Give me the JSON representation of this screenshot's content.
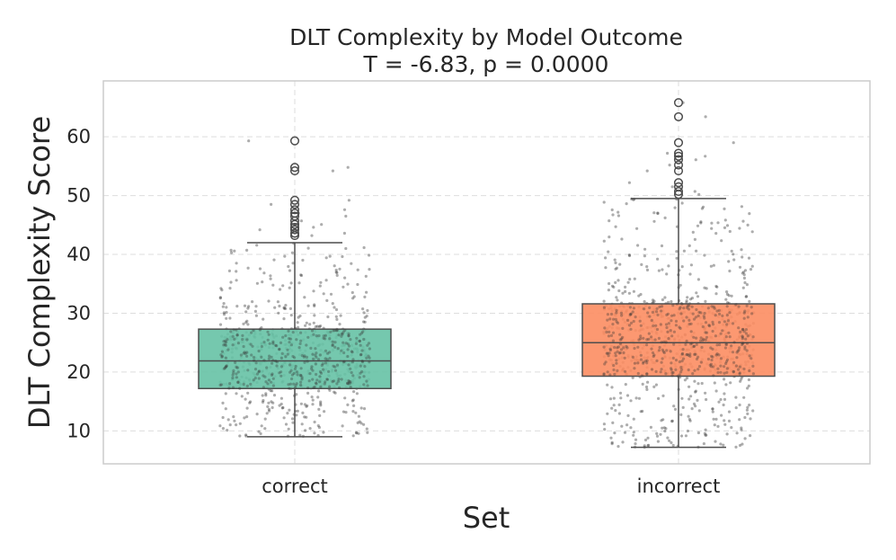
{
  "chart_data": {
    "type": "box",
    "title": "DLT Complexity by Model Outcome",
    "subtitle": "T = -6.83, p = 0.0000",
    "xlabel": "Set",
    "ylabel": "DLT Complexity Score",
    "categories": [
      "correct",
      "incorrect"
    ],
    "ylim": [
      4.4,
      69.5
    ],
    "yticks": [
      10,
      20,
      30,
      40,
      50,
      60
    ],
    "grid": true,
    "colors": {
      "correct": "#66c2a5",
      "incorrect": "#fc8d62"
    },
    "boxes": [
      {
        "category": "correct",
        "whisker_low": 9.0,
        "q1": 17.2,
        "median": 21.9,
        "q3": 27.3,
        "whisker_high": 42.0,
        "outliers": [
          43.2,
          43.6,
          44.2,
          44.6,
          45.1,
          45.7,
          46.5,
          47.0,
          47.6,
          48.5,
          49.2,
          54.2,
          54.8,
          59.3
        ]
      },
      {
        "category": "incorrect",
        "whisker_low": 7.2,
        "q1": 19.3,
        "median": 25.0,
        "q3": 31.6,
        "whisker_high": 49.5,
        "outliers": [
          50.2,
          50.7,
          51.5,
          52.2,
          54.2,
          55.2,
          56.1,
          56.7,
          57.2,
          59.0,
          63.4,
          65.8
        ]
      }
    ]
  }
}
